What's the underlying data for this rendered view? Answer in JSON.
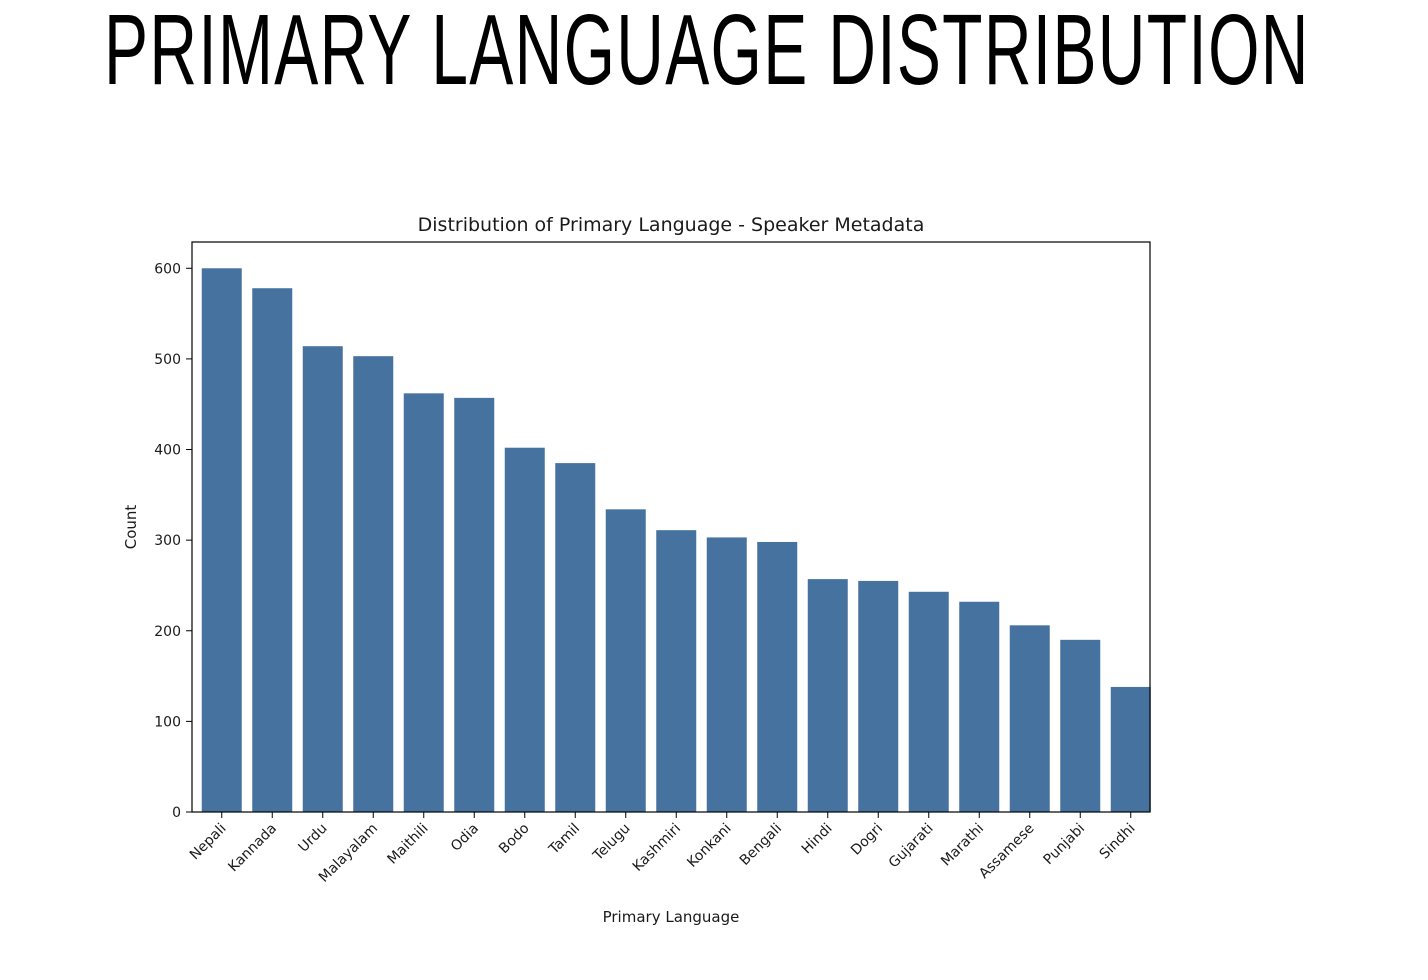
{
  "page": {
    "title": "PRIMARY LANGUAGE DISTRIBUTION"
  },
  "chart_data": {
    "type": "bar",
    "title": "Distribution of Primary Language - Speaker Metadata",
    "xlabel": "Primary Language",
    "ylabel": "Count",
    "categories": [
      "Nepali",
      "Kannada",
      "Urdu",
      "Malayalam",
      "Maithili",
      "Odia",
      "Bodo",
      "Tamil",
      "Telugu",
      "Kashmiri",
      "Konkani",
      "Bengali",
      "Hindi",
      "Dogri",
      "Gujarati",
      "Marathi",
      "Assamese",
      "Punjabi",
      "Sindhi"
    ],
    "values": [
      600,
      578,
      514,
      503,
      462,
      457,
      402,
      385,
      334,
      311,
      303,
      298,
      257,
      255,
      243,
      232,
      206,
      190,
      138
    ],
    "ylim": [
      0,
      629
    ],
    "yticks": [
      0,
      100,
      200,
      300,
      400,
      500,
      600
    ],
    "grid": false,
    "bar_color": "#4672a0"
  }
}
